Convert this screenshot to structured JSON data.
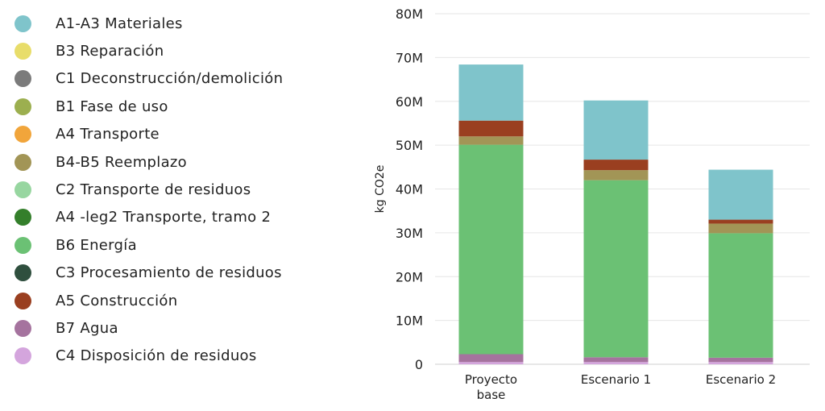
{
  "chart_data": {
    "type": "bar",
    "stacked": true,
    "ylabel": "kg CO2e",
    "ylim": [
      0,
      80000000
    ],
    "yticks": [
      {
        "value": 0,
        "label": "0"
      },
      {
        "value": 10000000,
        "label": "10M"
      },
      {
        "value": 20000000,
        "label": "20M"
      },
      {
        "value": 30000000,
        "label": "30M"
      },
      {
        "value": 40000000,
        "label": "40M"
      },
      {
        "value": 50000000,
        "label": "50M"
      },
      {
        "value": 60000000,
        "label": "60M"
      },
      {
        "value": 70000000,
        "label": "70M"
      },
      {
        "value": 80000000,
        "label": "80M"
      }
    ],
    "grid": true,
    "legend_position": "left",
    "categories": [
      [
        "Proyecto",
        "base"
      ],
      [
        "Escenario 1"
      ],
      [
        "Escenario 2"
      ]
    ],
    "series": [
      {
        "name": "A1-A3 Materiales",
        "color": "#7fc4cb",
        "values": [
          12800000,
          13500000,
          11400000
        ]
      },
      {
        "name": "B3 Reparación",
        "color": "#e8dd6a",
        "values": [
          0,
          0,
          0
        ]
      },
      {
        "name": "C1 Deconstrucción/demolición",
        "color": "#7b7b7b",
        "values": [
          0,
          0,
          0
        ]
      },
      {
        "name": "B1 Fase de uso",
        "color": "#9caf4f",
        "values": [
          0,
          0,
          0
        ]
      },
      {
        "name": "A4 Transporte",
        "color": "#f1a53b",
        "values": [
          0,
          0,
          0
        ]
      },
      {
        "name": "B4-B5 Reemplazo",
        "color": "#a29556",
        "values": [
          1900000,
          2300000,
          2200000
        ]
      },
      {
        "name": "C2 Transporte de residuos",
        "color": "#97d6a0",
        "values": [
          0,
          0,
          0
        ]
      },
      {
        "name": "A4 -leg2 Transporte, tramo 2",
        "color": "#347f2b",
        "values": [
          0,
          0,
          0
        ]
      },
      {
        "name": "B6 Energía",
        "color": "#6bc174",
        "values": [
          47800000,
          40400000,
          28400000
        ]
      },
      {
        "name": "C3 Procesamiento de residuos",
        "color": "#2f4f3e",
        "values": [
          0,
          0,
          0
        ]
      },
      {
        "name": "A5 Construcción",
        "color": "#9a3f20",
        "values": [
          3600000,
          2400000,
          900000
        ]
      },
      {
        "name": "B7 Agua",
        "color": "#a5739e",
        "values": [
          1800000,
          1100000,
          1000000
        ]
      },
      {
        "name": "C4 Disposición de residuos",
        "color": "#d4a5dd",
        "values": [
          500000,
          500000,
          500000
        ]
      }
    ]
  }
}
